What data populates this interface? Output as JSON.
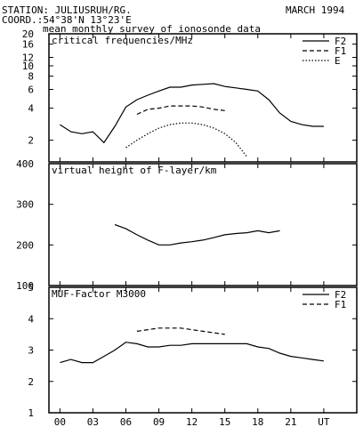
{
  "header": {
    "station": "STATION: JULIUSRUH/RG.",
    "date": "MARCH 1994",
    "coord": "COORD.:54°38'N 13°23'E",
    "subtitle": "mean monthly survey of ionosonde data"
  },
  "chart_data": [
    {
      "type": "line",
      "title": "critical frequencies/MHz",
      "yscale": "log",
      "ylim": [
        1.25,
        20
      ],
      "yticks": [
        2,
        4,
        6,
        8,
        10,
        12,
        16,
        20
      ],
      "ytick_labels": [
        "2",
        "4",
        "6",
        "8",
        "10",
        "12",
        "16",
        "20"
      ],
      "xlim": [
        -1,
        27
      ],
      "legend_position": "top-right",
      "series": [
        {
          "name": "F2",
          "style": "solid",
          "x": [
            0,
            1,
            2,
            3,
            4,
            5,
            6,
            7,
            8,
            9,
            10,
            11,
            12,
            13,
            14,
            15,
            16,
            17,
            18,
            19,
            20,
            21,
            22,
            23,
            24
          ],
          "y": [
            2.8,
            2.4,
            2.3,
            2.4,
            1.9,
            2.7,
            4.1,
            4.8,
            5.3,
            5.8,
            6.3,
            6.3,
            6.6,
            6.7,
            6.8,
            6.4,
            6.2,
            6.0,
            5.8,
            4.8,
            3.6,
            3.0,
            2.8,
            2.7,
            2.7
          ]
        },
        {
          "name": "F1",
          "style": "dashed",
          "x": [
            7,
            8,
            9,
            10,
            11,
            12,
            13,
            14,
            15
          ],
          "y": [
            3.5,
            3.9,
            4.0,
            4.2,
            4.2,
            4.2,
            4.1,
            3.9,
            3.8
          ]
        },
        {
          "name": "E",
          "style": "dotted",
          "x": [
            6,
            7,
            8,
            9,
            10,
            11,
            12,
            13,
            14,
            15,
            16,
            17
          ],
          "y": [
            1.7,
            2.0,
            2.3,
            2.6,
            2.8,
            2.9,
            2.9,
            2.8,
            2.6,
            2.3,
            1.9,
            1.4
          ]
        }
      ]
    },
    {
      "type": "line",
      "title": "virtual height of F-layer/km",
      "ylim": [
        100,
        400
      ],
      "yticks": [
        100,
        200,
        300,
        400
      ],
      "ytick_labels": [
        "100",
        "200",
        "300",
        "400"
      ],
      "xlim": [
        -1,
        27
      ],
      "series": [
        {
          "style": "solid",
          "x": [
            5,
            6,
            7,
            8,
            9,
            10,
            11,
            12,
            13,
            14,
            15,
            16,
            17,
            18,
            19,
            20
          ],
          "y": [
            250,
            240,
            225,
            212,
            200,
            200,
            205,
            208,
            212,
            218,
            225,
            228,
            230,
            235,
            230,
            235
          ]
        }
      ]
    },
    {
      "type": "line",
      "title": "MUF-Factor M3000",
      "ylim": [
        1,
        5
      ],
      "yticks": [
        1,
        2,
        3,
        4,
        5
      ],
      "ytick_labels": [
        "1",
        "2",
        "3",
        "4",
        "5"
      ],
      "xlim": [
        -1,
        27
      ],
      "xticks": [
        0,
        3,
        6,
        9,
        12,
        15,
        18,
        21,
        24
      ],
      "xtick_labels": [
        "00",
        "03",
        "06",
        "09",
        "12",
        "15",
        "18",
        "21",
        "UT"
      ],
      "legend_position": "top-right",
      "series": [
        {
          "name": "F2",
          "style": "solid",
          "x": [
            0,
            1,
            2,
            3,
            4,
            5,
            6,
            7,
            8,
            9,
            10,
            11,
            12,
            13,
            14,
            15,
            16,
            17,
            18,
            19,
            20,
            21,
            22,
            23,
            24
          ],
          "y": [
            2.6,
            2.7,
            2.6,
            2.6,
            2.8,
            3.0,
            3.25,
            3.2,
            3.1,
            3.1,
            3.15,
            3.15,
            3.2,
            3.2,
            3.2,
            3.2,
            3.2,
            3.2,
            3.1,
            3.05,
            2.9,
            2.8,
            2.75,
            2.7,
            2.65
          ]
        },
        {
          "name": "F1",
          "style": "dashed",
          "x": [
            7,
            8,
            9,
            10,
            11,
            12,
            13,
            14,
            15
          ],
          "y": [
            3.6,
            3.65,
            3.7,
            3.7,
            3.7,
            3.65,
            3.6,
            3.55,
            3.5
          ]
        }
      ]
    }
  ]
}
